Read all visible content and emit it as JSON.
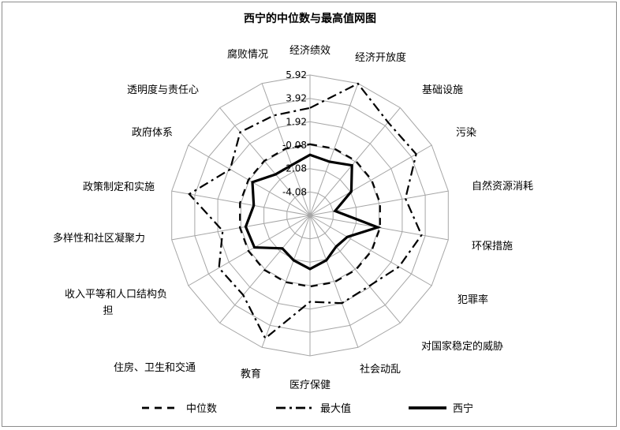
{
  "chart_data": {
    "type": "radar",
    "title": "西宁的中位数与最高值网图",
    "categories": [
      "经济绩效",
      "经济开放度",
      "基础设施",
      "污染",
      "自然资源消耗",
      "环保措施",
      "犯罪率",
      "对国家稳定的威胁",
      "社会动乱",
      "医疗保健",
      "教育",
      "住房、卫生和交通",
      "收入平等和人口结构负担",
      "多样性和社区凝聚力",
      "政策制定和实施",
      "政府体系",
      "透明度与责任心",
      "腐败情况"
    ],
    "tick_labels": [
      "5.92",
      "3.92",
      "1.92",
      "-0.08",
      "-2.08",
      "-4.08"
    ],
    "r_range": [
      -6.08,
      5.92
    ],
    "grid": true,
    "legend": "bottom",
    "series": [
      {
        "name": "中位数",
        "style": "dashed",
        "values": [
          0,
          0,
          0,
          0,
          0,
          0,
          0,
          0,
          0,
          0,
          0,
          0,
          0,
          0,
          0,
          0,
          0,
          0
        ]
      },
      {
        "name": "最大值",
        "style": "dashdot",
        "values": [
          3.1,
          5.9,
          4.3,
          4.4,
          2.2,
          3.6,
          2.7,
          1.8,
          1.9,
          1.3,
          5.1,
          2.8,
          2.9,
          1.5,
          4.4,
          1.8,
          3.2,
          3.0
        ]
      },
      {
        "name": "西宁",
        "style": "solid",
        "values": [
          -0.9,
          -1.2,
          -0.5,
          -2.0,
          -3.9,
          -0.2,
          -2.4,
          -2.6,
          -2.0,
          -1.5,
          -2.0,
          -2.4,
          -0.6,
          -0.5,
          -1.2,
          -0.4,
          -1.5,
          -1.5
        ]
      }
    ]
  }
}
